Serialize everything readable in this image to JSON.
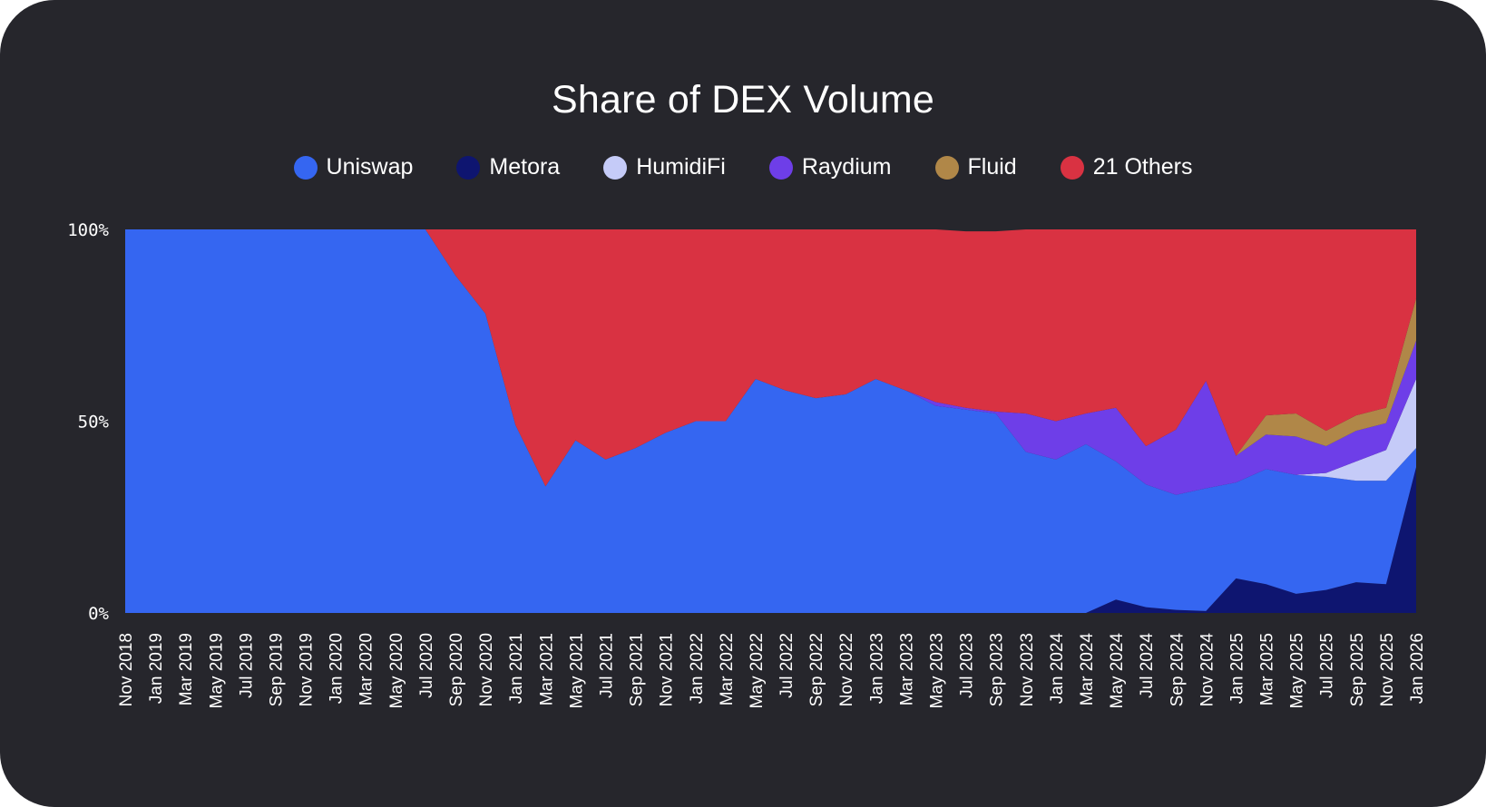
{
  "colors": {
    "background": "#26262c",
    "Uniswap": "#3566f1",
    "Metora": "#0e1570",
    "HumidiFi": "#c5cbf8",
    "Raydium": "#6e3ee8",
    "Fluid": "#b08748",
    "21 Others": "#d93242"
  },
  "chart_data": {
    "type": "area",
    "stacked": true,
    "normalized": true,
    "title": "Share of DEX Volume",
    "xlabel": "",
    "ylabel": "",
    "ylim": [
      0,
      100
    ],
    "yticks": [
      "0%",
      "50%",
      "100%"
    ],
    "legend_position": "top-center",
    "categories": [
      "Nov 2018",
      "Jan 2019",
      "Mar 2019",
      "May 2019",
      "Jul 2019",
      "Sep 2019",
      "Nov 2019",
      "Jan 2020",
      "Mar 2020",
      "May 2020",
      "Jul 2020",
      "Sep 2020",
      "Nov 2020",
      "Jan 2021",
      "Mar 2021",
      "May 2021",
      "Jul 2021",
      "Sep 2021",
      "Nov 2021",
      "Jan 2022",
      "Mar 2022",
      "May 2022",
      "Jul 2022",
      "Sep 2022",
      "Nov 2022",
      "Jan 2023",
      "Mar 2023",
      "May 2023",
      "Jul 2023",
      "Sep 2023",
      "Nov 2023",
      "Jan 2024",
      "Mar 2024",
      "May 2024",
      "Jul 2024",
      "Sep 2024",
      "Nov 2024",
      "Jan 2025",
      "Mar 2025",
      "May 2025",
      "Jul 2025",
      "Sep 2025",
      "Nov 2025",
      "Jan 2026"
    ],
    "series": [
      {
        "name": "Metora",
        "values": [
          0,
          0,
          0,
          0,
          0,
          0,
          0,
          0,
          0,
          0,
          0,
          0,
          0,
          0,
          0,
          0,
          0,
          0,
          0,
          0,
          0,
          0,
          0,
          0,
          0,
          0,
          0,
          0,
          0,
          0,
          0,
          0,
          0,
          3.5,
          1.5,
          0.8,
          0.5,
          9,
          7.5,
          5,
          6,
          8,
          7.5,
          38
        ]
      },
      {
        "name": "Uniswap",
        "values": [
          100,
          100,
          100,
          100,
          100,
          100,
          100,
          100,
          100,
          100,
          100,
          88,
          78,
          49,
          33,
          45,
          40,
          43,
          47,
          50,
          50,
          61,
          58,
          56,
          57,
          61,
          58,
          54,
          53,
          52,
          42,
          40,
          44,
          36,
          32,
          30,
          32,
          25,
          30,
          31,
          29.5,
          26.5,
          27,
          5
        ]
      },
      {
        "name": "HumidiFi",
        "values": [
          0,
          0,
          0,
          0,
          0,
          0,
          0,
          0,
          0,
          0,
          0,
          0,
          0,
          0,
          0,
          0,
          0,
          0,
          0,
          0,
          0,
          0,
          0,
          0,
          0,
          0,
          0,
          0,
          0,
          0,
          0,
          0,
          0,
          0,
          0,
          0,
          0,
          0,
          0,
          0,
          1,
          5,
          8,
          18
        ]
      },
      {
        "name": "Raydium",
        "values": [
          0,
          0,
          0,
          0,
          0,
          0,
          0,
          0,
          0,
          0,
          0,
          0,
          0,
          0,
          0,
          0,
          0,
          0,
          0,
          0,
          0,
          0,
          0,
          0,
          0,
          0,
          0,
          1,
          0.5,
          0.5,
          10,
          10,
          8,
          14,
          10,
          17,
          28,
          7,
          9,
          10,
          7,
          8,
          7,
          10
        ]
      },
      {
        "name": "Fluid",
        "values": [
          0,
          0,
          0,
          0,
          0,
          0,
          0,
          0,
          0,
          0,
          0,
          0,
          0,
          0,
          0,
          0,
          0,
          0,
          0,
          0,
          0,
          0,
          0,
          0,
          0,
          0,
          0,
          0,
          0,
          0,
          0,
          0,
          0,
          0,
          0,
          0,
          0,
          0,
          5,
          6,
          4,
          4,
          4,
          11
        ]
      },
      {
        "name": "21 Others",
        "values": [
          0,
          0,
          0,
          0,
          0,
          0,
          0,
          0,
          0,
          0,
          0,
          12,
          22,
          51,
          67,
          55,
          60,
          57,
          53,
          50,
          50,
          39,
          42,
          44,
          43,
          39,
          42,
          45,
          46,
          47,
          48,
          50,
          48,
          46.5,
          56.5,
          52.2,
          39.5,
          59,
          48.5,
          48,
          52.5,
          48.5,
          46.5,
          18
        ]
      }
    ]
  }
}
